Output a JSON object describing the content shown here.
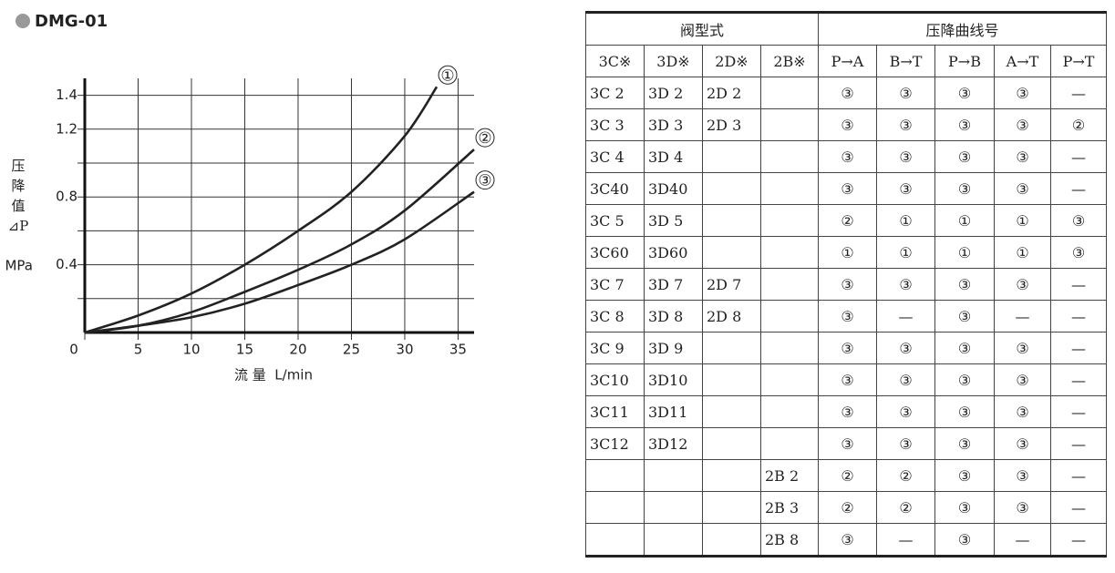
{
  "chart_data": {
    "type": "line",
    "title": "DMG-01",
    "y_label": [
      "压",
      "降",
      "值",
      "⊿P"
    ],
    "y_unit": "MPa",
    "x_label": "流 量  L/min",
    "xlim": [
      0,
      36.5
    ],
    "xticks": [
      0,
      5,
      10,
      15,
      20,
      25,
      30,
      35
    ],
    "ylim": [
      0,
      1.5
    ],
    "yticks": [
      0.4,
      0.8,
      1.2,
      1.4
    ],
    "ygrid": [
      0.2,
      0.4,
      0.6,
      0.8,
      1.0,
      1.2,
      1.4
    ],
    "grid": true,
    "series": [
      {
        "name": "①",
        "color": "#222222",
        "x": [
          0,
          5,
          10,
          15,
          20,
          25,
          30,
          33
        ],
        "values": [
          0,
          0.1,
          0.23,
          0.4,
          0.6,
          0.83,
          1.16,
          1.45
        ]
      },
      {
        "name": "②",
        "color": "#222222",
        "x": [
          0,
          5,
          10,
          15,
          20,
          25,
          30,
          36.5
        ],
        "values": [
          0,
          0.04,
          0.12,
          0.24,
          0.37,
          0.52,
          0.72,
          1.08
        ]
      },
      {
        "name": "③",
        "color": "#222222",
        "x": [
          0,
          5,
          10,
          15,
          20,
          25,
          30,
          36.5
        ],
        "values": [
          0,
          0.04,
          0.09,
          0.17,
          0.28,
          0.4,
          0.55,
          0.83
        ]
      }
    ]
  },
  "table": {
    "group_headers": [
      {
        "text": "阀型式",
        "span": 4
      },
      {
        "text": "压降曲线号",
        "span": 5
      }
    ],
    "headers": [
      "3C※",
      "3D※",
      "2D※",
      "2B※",
      "P→A",
      "B→T",
      "P→B",
      "A→T",
      "P→T"
    ],
    "rows": [
      [
        "3C 2",
        "3D 2",
        "2D 2",
        null,
        "③",
        "③",
        "③",
        "③",
        "—"
      ],
      [
        "3C 3",
        "3D 3",
        "2D 3",
        null,
        "③",
        "③",
        "③",
        "③",
        "②"
      ],
      [
        "3C 4",
        "3D 4",
        null,
        null,
        "③",
        "③",
        "③",
        "③",
        "—"
      ],
      [
        "3C40",
        "3D40",
        null,
        null,
        "③",
        "③",
        "③",
        "③",
        "—"
      ],
      [
        "3C 5",
        "3D 5",
        null,
        null,
        "②",
        "①",
        "①",
        "①",
        "③"
      ],
      [
        "3C60",
        "3D60",
        null,
        null,
        "①",
        "①",
        "①",
        "①",
        "③"
      ],
      [
        "3C 7",
        "3D 7",
        "2D 7",
        null,
        "③",
        "③",
        "③",
        "③",
        "—"
      ],
      [
        "3C 8",
        "3D 8",
        "2D 8",
        null,
        "③",
        "—",
        "③",
        "—",
        "—"
      ],
      [
        "3C 9",
        "3D 9",
        null,
        null,
        "③",
        "③",
        "③",
        "③",
        "—"
      ],
      [
        "3C10",
        "3D10",
        null,
        null,
        "③",
        "③",
        "③",
        "③",
        "—"
      ],
      [
        "3C11",
        "3D11",
        null,
        null,
        "③",
        "③",
        "③",
        "③",
        "—"
      ],
      [
        "3C12",
        "3D12",
        null,
        null,
        "③",
        "③",
        "③",
        "③",
        "—"
      ],
      [
        null,
        null,
        null,
        "2B 2",
        "②",
        "②",
        "③",
        "③",
        "—"
      ],
      [
        null,
        null,
        null,
        "2B 3",
        "②",
        "②",
        "③",
        "③",
        "—"
      ],
      [
        null,
        null,
        null,
        "2B 8",
        "③",
        "—",
        "③",
        "—",
        "—"
      ]
    ]
  }
}
